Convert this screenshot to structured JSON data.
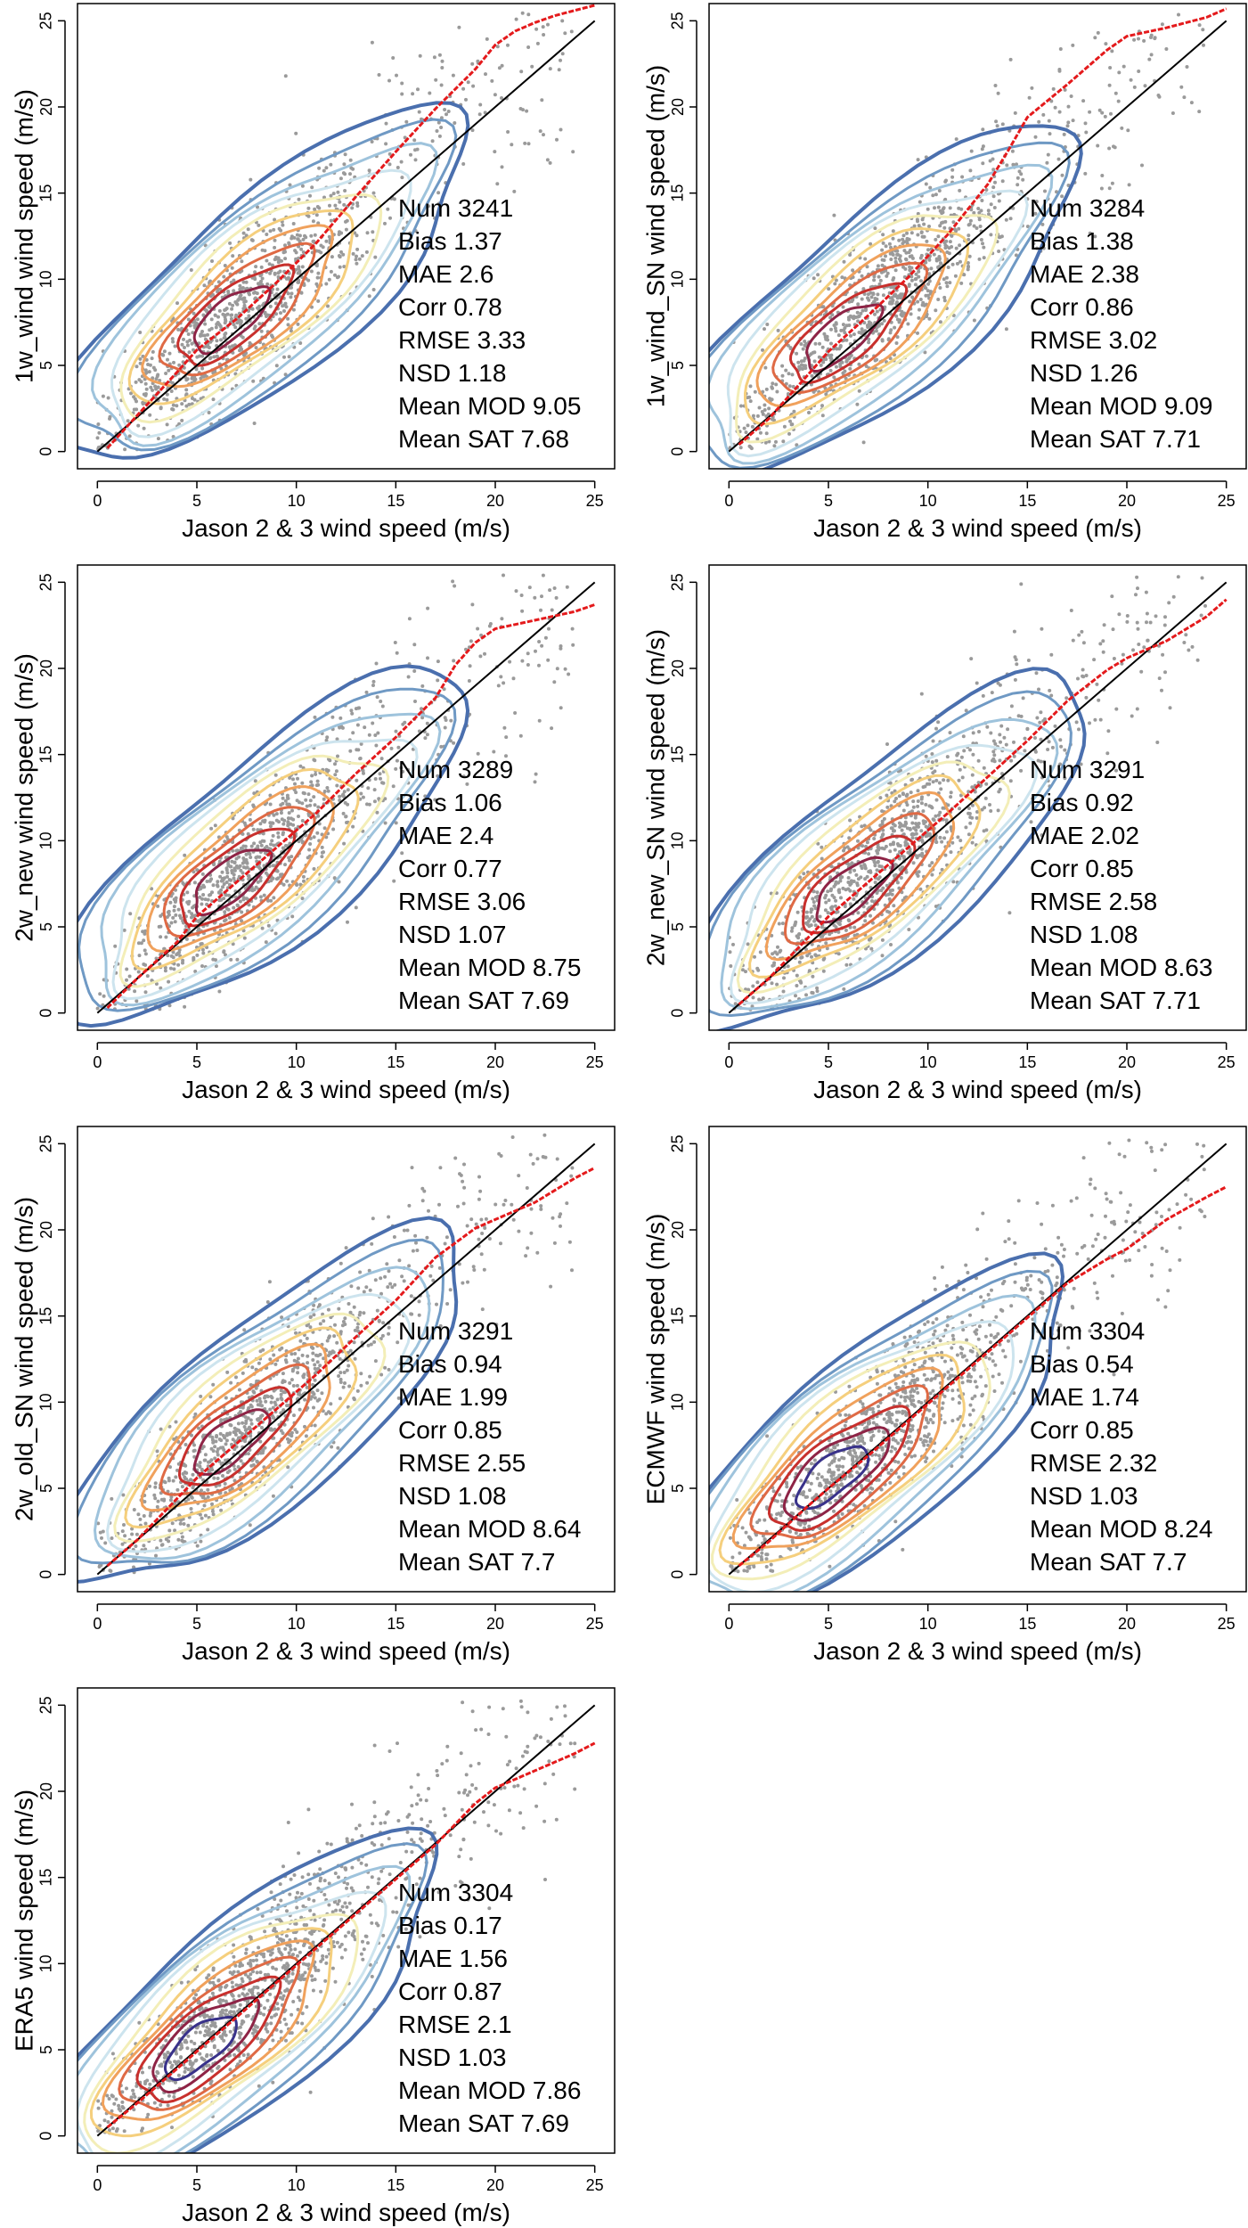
{
  "chart_data": [
    {
      "type": "scatter",
      "xlabel": "Jason 2 & 3 wind speed (m/s)",
      "ylabel": "1w_wind wind speed (m/s)",
      "xlim": [
        -1,
        26
      ],
      "ylim": [
        -1,
        26
      ],
      "xticks": [
        "0",
        "5",
        "10",
        "15",
        "20",
        "25"
      ],
      "yticks": [
        "0",
        "5",
        "10",
        "15",
        "20",
        "25"
      ],
      "stats": [
        "Num 3241",
        "Bias 1.37",
        "MAE 2.6",
        "Corr 0.78",
        "RMSE 3.33",
        "NSD 1.18",
        "Mean MOD 9.05",
        "Mean SAT 7.68"
      ],
      "quantile_line": [
        [
          0.5,
          0.2
        ],
        [
          2,
          2.1
        ],
        [
          4,
          4.6
        ],
        [
          5,
          5.9
        ],
        [
          7,
          7.7
        ],
        [
          9,
          9.8
        ],
        [
          11,
          12.1
        ],
        [
          13,
          14.8
        ],
        [
          15,
          17.4
        ],
        [
          17,
          19.9
        ],
        [
          19,
          22.2
        ],
        [
          20,
          23.6
        ],
        [
          21,
          24.4
        ],
        [
          22,
          24.9
        ],
        [
          23,
          25.3
        ],
        [
          24,
          25.6
        ],
        [
          25,
          25.9
        ]
      ],
      "contour_center": [
        6.5,
        7.5
      ],
      "contour_core": 0.8
    },
    {
      "type": "scatter",
      "xlabel": "Jason 2 & 3 wind speed (m/s)",
      "ylabel": "1w_wind_SN wind speed (m/s)",
      "xlim": [
        -1,
        26
      ],
      "ylim": [
        -1,
        26
      ],
      "xticks": [
        "0",
        "5",
        "10",
        "15",
        "20",
        "25"
      ],
      "yticks": [
        "0",
        "5",
        "10",
        "15",
        "20",
        "25"
      ],
      "stats": [
        "Num 3284",
        "Bias 1.38",
        "MAE 2.38",
        "Corr 0.86",
        "RMSE 3.02",
        "NSD 1.26",
        "Mean MOD 9.09",
        "Mean SAT 7.71"
      ],
      "quantile_line": [
        [
          0.5,
          0.4
        ],
        [
          2,
          1.9
        ],
        [
          4,
          4.5
        ],
        [
          5,
          5.8
        ],
        [
          7,
          7.9
        ],
        [
          9,
          10.1
        ],
        [
          11,
          12.6
        ],
        [
          13,
          15.5
        ],
        [
          14,
          17.4
        ],
        [
          15,
          19.4
        ],
        [
          17,
          21.3
        ],
        [
          19,
          23.3
        ],
        [
          20,
          24.1
        ],
        [
          22,
          24.6
        ],
        [
          24,
          25.2
        ],
        [
          25,
          25.7
        ]
      ],
      "contour_center": [
        5.5,
        6.5
      ],
      "contour_core": 0.85
    },
    {
      "type": "scatter",
      "xlabel": "Jason 2 & 3 wind speed (m/s)",
      "ylabel": "2w_new wind speed (m/s)",
      "xlim": [
        -1,
        26
      ],
      "ylim": [
        -1,
        26
      ],
      "xticks": [
        "0",
        "5",
        "10",
        "15",
        "20",
        "25"
      ],
      "yticks": [
        "0",
        "5",
        "10",
        "15",
        "20",
        "25"
      ],
      "stats": [
        "Num 3289",
        "Bias 1.06",
        "MAE 2.4",
        "Corr 0.77",
        "RMSE 3.06",
        "NSD 1.07",
        "Mean MOD 8.75",
        "Mean SAT 7.69"
      ],
      "quantile_line": [
        [
          0.5,
          0.3
        ],
        [
          2,
          2.0
        ],
        [
          4,
          4.1
        ],
        [
          5,
          5.6
        ],
        [
          7,
          7.6
        ],
        [
          9,
          9.6
        ],
        [
          11,
          11.6
        ],
        [
          13,
          13.9
        ],
        [
          15,
          16.0
        ],
        [
          17,
          18.3
        ],
        [
          18,
          20.2
        ],
        [
          19,
          21.5
        ],
        [
          20,
          22.3
        ],
        [
          22,
          22.8
        ],
        [
          24,
          23.3
        ],
        [
          25,
          23.7
        ]
      ],
      "contour_center": [
        6.5,
        7.5
      ],
      "contour_core": 0.8
    },
    {
      "type": "scatter",
      "xlabel": "Jason 2 & 3 wind speed (m/s)",
      "ylabel": "2w_new_SN wind speed (m/s)",
      "xlim": [
        -1,
        26
      ],
      "ylim": [
        -1,
        26
      ],
      "xticks": [
        "0",
        "5",
        "10",
        "15",
        "20",
        "25"
      ],
      "yticks": [
        "0",
        "5",
        "10",
        "15",
        "20",
        "25"
      ],
      "stats": [
        "Num 3291",
        "Bias 0.92",
        "MAE 2.02",
        "Corr 0.85",
        "RMSE 2.58",
        "NSD 1.08",
        "Mean MOD 8.63",
        "Mean SAT 7.71"
      ],
      "quantile_line": [
        [
          0.5,
          0.5
        ],
        [
          2,
          2.0
        ],
        [
          4,
          4.4
        ],
        [
          5,
          5.6
        ],
        [
          7,
          7.6
        ],
        [
          9,
          9.6
        ],
        [
          11,
          11.6
        ],
        [
          13,
          13.7
        ],
        [
          15,
          15.8
        ],
        [
          17,
          18.1
        ],
        [
          19,
          19.9
        ],
        [
          20,
          20.6
        ],
        [
          22,
          21.6
        ],
        [
          24,
          23.0
        ],
        [
          25,
          24.0
        ]
      ],
      "contour_center": [
        6,
        7
      ],
      "contour_core": 0.85
    },
    {
      "type": "scatter",
      "xlabel": "Jason 2 & 3 wind speed (m/s)",
      "ylabel": "2w_old_SN wind speed (m/s)",
      "xlim": [
        -1,
        26
      ],
      "ylim": [
        -1,
        26
      ],
      "xticks": [
        "0",
        "5",
        "10",
        "15",
        "20",
        "25"
      ],
      "yticks": [
        "0",
        "5",
        "10",
        "15",
        "20",
        "25"
      ],
      "stats": [
        "Num 3291",
        "Bias 0.94",
        "MAE 1.99",
        "Corr 0.85",
        "RMSE 2.55",
        "NSD 1.08",
        "Mean MOD 8.64",
        "Mean SAT 7.7"
      ],
      "quantile_line": [
        [
          0.5,
          0.5
        ],
        [
          2,
          2.0
        ],
        [
          4,
          4.4
        ],
        [
          5,
          5.6
        ],
        [
          7,
          7.6
        ],
        [
          9,
          9.6
        ],
        [
          11,
          11.6
        ],
        [
          13,
          13.8
        ],
        [
          15,
          15.9
        ],
        [
          17,
          18.4
        ],
        [
          19,
          20.1
        ],
        [
          20,
          20.6
        ],
        [
          22,
          21.6
        ],
        [
          24,
          23.0
        ],
        [
          25,
          23.6
        ]
      ],
      "contour_center": [
        6.5,
        7.5
      ],
      "contour_core": 0.85
    },
    {
      "type": "scatter",
      "xlabel": "Jason 2 & 3 wind speed (m/s)",
      "ylabel": "ECMWF wind speed (m/s)",
      "xlim": [
        -1,
        26
      ],
      "ylim": [
        -1,
        26
      ],
      "xticks": [
        "0",
        "5",
        "10",
        "15",
        "20",
        "25"
      ],
      "yticks": [
        "0",
        "5",
        "10",
        "15",
        "20",
        "25"
      ],
      "stats": [
        "Num 3304",
        "Bias 0.54",
        "MAE 1.74",
        "Corr 0.85",
        "RMSE 2.32",
        "NSD 1.03",
        "Mean MOD 8.24",
        "Mean SAT 7.7"
      ],
      "quantile_line": [
        [
          0.5,
          0.5
        ],
        [
          2,
          1.9
        ],
        [
          4,
          4.0
        ],
        [
          5,
          5.0
        ],
        [
          7,
          6.9
        ],
        [
          9,
          8.9
        ],
        [
          11,
          10.9
        ],
        [
          13,
          12.9
        ],
        [
          15,
          14.9
        ],
        [
          17,
          16.9
        ],
        [
          19,
          18.3
        ],
        [
          20,
          18.9
        ],
        [
          22,
          20.6
        ],
        [
          24,
          21.9
        ],
        [
          25,
          22.5
        ]
      ],
      "contour_center": [
        5,
        5.5
      ],
      "contour_core": 0.9
    },
    {
      "type": "scatter",
      "xlabel": "Jason 2 & 3 wind speed (m/s)",
      "ylabel": "ERA5 wind speed (m/s)",
      "xlim": [
        -1,
        26
      ],
      "ylim": [
        -1,
        26
      ],
      "xticks": [
        "0",
        "5",
        "10",
        "15",
        "20",
        "25"
      ],
      "yticks": [
        "0",
        "5",
        "10",
        "15",
        "20",
        "25"
      ],
      "stats": [
        "Num 3304",
        "Bias 0.17",
        "MAE 1.56",
        "Corr 0.87",
        "RMSE 2.1",
        "NSD 1.03",
        "Mean MOD 7.86",
        "Mean SAT 7.69"
      ],
      "quantile_line": [
        [
          0.5,
          0.5
        ],
        [
          2,
          1.9
        ],
        [
          4,
          3.9
        ],
        [
          5,
          4.9
        ],
        [
          7,
          6.9
        ],
        [
          9,
          8.9
        ],
        [
          11,
          10.9
        ],
        [
          13,
          12.9
        ],
        [
          15,
          14.9
        ],
        [
          17,
          16.9
        ],
        [
          19,
          19.3
        ],
        [
          20,
          20.2
        ],
        [
          22,
          21.2
        ],
        [
          24,
          22.2
        ],
        [
          25,
          22.8
        ]
      ],
      "contour_center": [
        5,
        5
      ],
      "contour_core": 0.88
    }
  ],
  "colors": {
    "points": "#9a9a9a",
    "quantile": "#e41a1c",
    "identity": "#000000",
    "contours": [
      "#4a6fae",
      "#6f99c4",
      "#9ec3dc",
      "#cde4ee",
      "#f3eeb8",
      "#f5cf7d",
      "#f0a15c",
      "#df6a45",
      "#c8302d",
      "#8e2446",
      "#39328a"
    ]
  }
}
